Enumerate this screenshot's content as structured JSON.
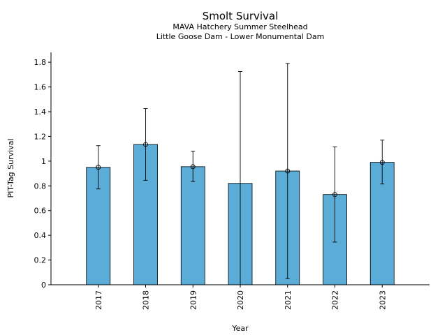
{
  "chart_data": {
    "type": "bar",
    "title": "Smolt Survival",
    "subtitle_lines": [
      "MAVA Hatchery Summer Steelhead",
      "Little Goose Dam - Lower Monumental Dam"
    ],
    "xlabel": "Year",
    "ylabel": "PIT-Tag Survival",
    "categories": [
      "2017",
      "2018",
      "2019",
      "2020",
      "2021",
      "2022",
      "2023"
    ],
    "values": [
      0.95,
      1.135,
      0.955,
      0.82,
      0.92,
      0.73,
      0.99
    ],
    "error_low": [
      0.775,
      0.845,
      0.835,
      0.0,
      0.05,
      0.345,
      0.815
    ],
    "error_high": [
      1.125,
      1.425,
      1.08,
      1.725,
      1.79,
      1.115,
      1.17
    ],
    "point_markers": [
      true,
      true,
      true,
      false,
      true,
      true,
      true
    ],
    "ylim": [
      0,
      1.88
    ],
    "yticks": [
      0,
      0.2,
      0.4,
      0.6,
      0.8,
      1,
      1.2,
      1.4,
      1.6,
      1.8
    ],
    "ytick_labels": [
      "0",
      "0.2",
      "0.4",
      "0.6",
      "0.8",
      "1",
      "1.2",
      "1.4",
      "1.6",
      "1.8"
    ],
    "bar_color": "#5BACD6",
    "bar_edge_color": "#000000",
    "grid": false,
    "legend": "none"
  }
}
